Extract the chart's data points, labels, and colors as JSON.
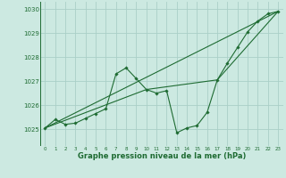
{
  "title": "Graphe pression niveau de la mer (hPa)",
  "background_color": "#cce9e1",
  "grid_color": "#aacfc7",
  "line_color": "#1e6b32",
  "xlim": [
    -0.5,
    23.5
  ],
  "ylim": [
    1024.3,
    1030.3
  ],
  "yticks": [
    1025,
    1026,
    1027,
    1028,
    1029,
    1030
  ],
  "xticks": [
    0,
    1,
    2,
    3,
    4,
    5,
    6,
    7,
    8,
    9,
    10,
    11,
    12,
    13,
    14,
    15,
    16,
    17,
    18,
    19,
    20,
    21,
    22,
    23
  ],
  "main_x": [
    0,
    1,
    2,
    3,
    4,
    5,
    6,
    7,
    8,
    9,
    10,
    11,
    12,
    13,
    14,
    15,
    16,
    17,
    18,
    19,
    20,
    21,
    22,
    23
  ],
  "main_y": [
    1025.05,
    1025.4,
    1025.2,
    1025.25,
    1025.45,
    1025.65,
    1025.85,
    1027.3,
    1027.55,
    1027.1,
    1026.65,
    1026.5,
    1026.6,
    1024.85,
    1025.05,
    1025.15,
    1025.7,
    1027.05,
    1027.75,
    1028.4,
    1029.05,
    1029.5,
    1029.8,
    1029.9
  ],
  "trend1_x": [
    0,
    23
  ],
  "trend1_y": [
    1025.05,
    1029.9
  ],
  "trend2_x": [
    0,
    10,
    17,
    23
  ],
  "trend2_y": [
    1025.05,
    1026.65,
    1027.05,
    1029.9
  ]
}
